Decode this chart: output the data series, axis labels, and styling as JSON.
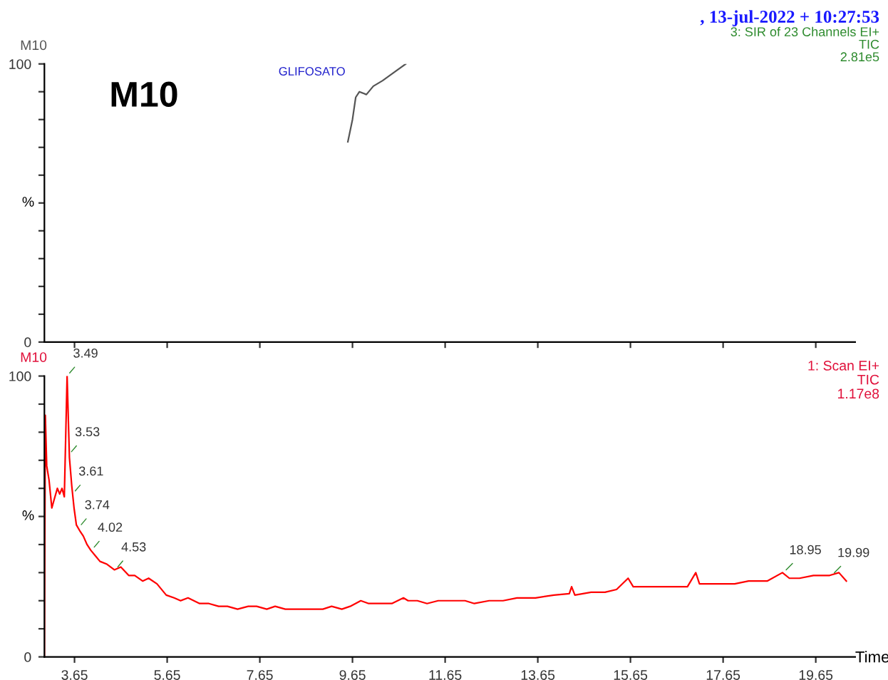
{
  "chart_data": [
    {
      "type": "line",
      "ylabel": "%",
      "xlim": [
        3.0,
        20.5
      ],
      "ylim": [
        0,
        100
      ],
      "yticks": [
        0,
        {
          "value": 10,
          "label": null
        },
        {
          "value": 20,
          "label": null
        },
        {
          "value": 30,
          "label": null
        },
        {
          "value": 40,
          "label": null
        },
        {
          "value": 50,
          "label": null
        },
        {
          "value": 60,
          "label": null
        },
        {
          "value": 70,
          "label": null
        },
        {
          "value": 80,
          "label": null
        },
        {
          "value": 90,
          "label": null
        },
        100
      ],
      "xticks": [
        3.65,
        5.65,
        7.65,
        9.65,
        11.65,
        13.65,
        15.65,
        17.65,
        19.65
      ],
      "tick_labels": "y",
      "grid": false,
      "legend": false,
      "series": [
        {
          "color": "#555555",
          "x": [
            9.55,
            9.65,
            9.72,
            9.8,
            9.95,
            10.1,
            10.3,
            10.55,
            10.8
          ],
          "values": [
            72,
            80,
            88,
            90,
            89,
            92,
            94,
            97,
            100
          ]
        }
      ],
      "annotations": [
        "M10",
        "M10",
        ", 13-jul-2022 + 10:27:53",
        "3: SIR of 23 Channels EI+",
        "TIC",
        "2.81e5",
        "GLIFOSATO"
      ]
    },
    {
      "type": "line",
      "ylabel": "%",
      "xlabel": "Time",
      "xlim": [
        3.0,
        20.5
      ],
      "ylim": [
        0,
        100
      ],
      "yticks": [
        0,
        {
          "value": 10,
          "label": null
        },
        {
          "value": 20,
          "label": null
        },
        {
          "value": 30,
          "label": null
        },
        {
          "value": 40,
          "label": null
        },
        {
          "value": 50,
          "label": null
        },
        {
          "value": 60,
          "label": null
        },
        {
          "value": 70,
          "label": null
        },
        {
          "value": 80,
          "label": null
        },
        {
          "value": 90,
          "label": null
        },
        100
      ],
      "xticks": [
        3.65,
        5.65,
        7.65,
        9.65,
        11.65,
        13.65,
        15.65,
        17.65,
        19.65
      ],
      "grid": false,
      "legend": false,
      "series": [
        {
          "color": "#ff0000",
          "x": [
            3.0,
            3.02,
            3.05,
            3.1,
            3.16,
            3.21,
            3.28,
            3.33,
            3.38,
            3.43,
            3.49,
            3.54,
            3.59,
            3.64,
            3.69,
            3.76,
            3.84,
            3.92,
            4.0,
            4.1,
            4.2,
            4.35,
            4.51,
            4.65,
            4.82,
            4.95,
            5.12,
            5.25,
            5.43,
            5.63,
            5.8,
            5.94,
            6.1,
            6.35,
            6.55,
            6.76,
            6.95,
            7.17,
            7.4,
            7.58,
            7.8,
            7.98,
            8.2,
            8.4,
            8.7,
            9.01,
            9.2,
            9.42,
            9.6,
            9.83,
            10.0,
            10.24,
            10.5,
            10.75,
            10.85,
            11.05,
            11.26,
            11.5,
            11.82,
            12.08,
            12.28,
            12.6,
            12.9,
            13.2,
            13.6,
            14.0,
            14.33,
            14.38,
            14.45,
            14.8,
            15.1,
            15.35,
            15.6,
            15.71,
            16.0,
            16.4,
            16.88,
            17.06,
            17.14,
            17.5,
            17.9,
            18.2,
            18.41,
            18.6,
            18.93,
            19.08,
            19.3,
            19.6,
            19.95,
            20.15,
            20.31
          ],
          "values": [
            0,
            86,
            68,
            63,
            53,
            56,
            60,
            58,
            60,
            57,
            100,
            71,
            61,
            53,
            47,
            45,
            43,
            40,
            38,
            36,
            34,
            33,
            31,
            32,
            29,
            29,
            27,
            28,
            26,
            22,
            21,
            20,
            21,
            19,
            19,
            18,
            18,
            17,
            18,
            18,
            17,
            18,
            17,
            17,
            17,
            17,
            18,
            17,
            18,
            20,
            19,
            19,
            19,
            21,
            20,
            20,
            19,
            20,
            20,
            20,
            19,
            20,
            20,
            21,
            21,
            22,
            22.5,
            25,
            22,
            23,
            23,
            24,
            28,
            25,
            25,
            25,
            25,
            30,
            26,
            26,
            26,
            27,
            27,
            27,
            30,
            28,
            28,
            29,
            29,
            30,
            27
          ]
        }
      ],
      "annotations": [
        "M10",
        "1: Scan EI+",
        "TIC",
        "1.17e8",
        {
          "text": "3.49",
          "x": 3.49,
          "y": 100
        },
        {
          "text": "3.53",
          "x": 3.53,
          "y": 72
        },
        {
          "text": "3.61",
          "x": 3.61,
          "y": 58
        },
        {
          "text": "3.74",
          "x": 3.74,
          "y": 46
        },
        {
          "text": "4.02",
          "x": 4.02,
          "y": 38
        },
        {
          "text": "4.53",
          "x": 4.53,
          "y": 31
        },
        {
          "text": "18.95",
          "x": 18.95,
          "y": 30
        },
        {
          "text": "19.99",
          "x": 19.99,
          "y": 29
        }
      ]
    }
  ]
}
